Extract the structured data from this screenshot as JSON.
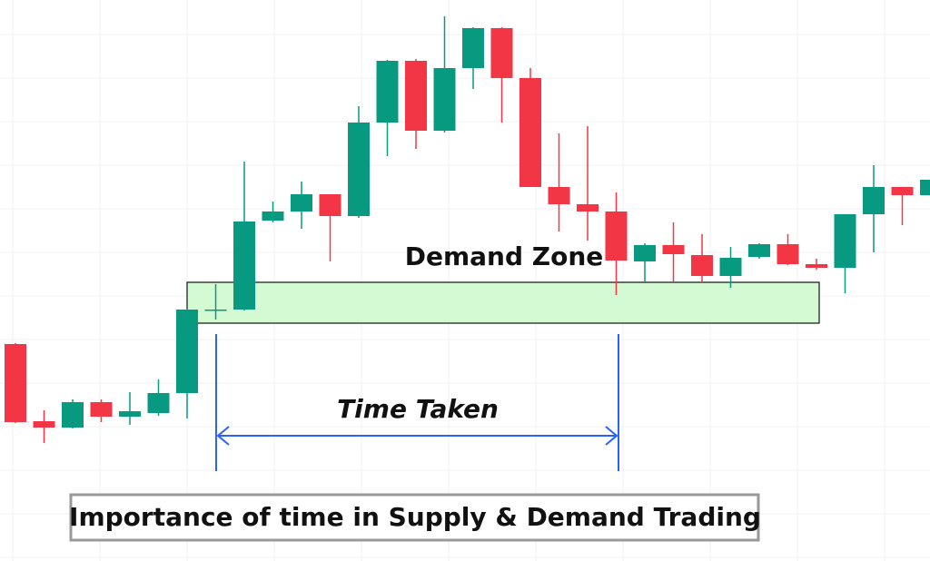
{
  "chart_data": {
    "type": "candlestick",
    "up_color": "#089981",
    "down_color": "#f23645",
    "grid": true,
    "ylim": [
      0,
      618
    ],
    "categories": [
      null,
      null,
      null,
      null,
      null,
      null,
      null,
      null,
      null,
      null,
      null,
      null,
      null,
      null,
      null,
      null,
      null,
      null,
      null,
      null,
      null,
      null,
      null,
      null,
      null,
      null,
      null,
      null,
      null,
      null,
      null,
      null,
      null
    ],
    "open": [
      239,
      154,
      147,
      175,
      159,
      163,
      185,
      276,
      277,
      375,
      385,
      404,
      380,
      483,
      551,
      474,
      543,
      587,
      532,
      412,
      393,
      385,
      330,
      348,
      337,
      314,
      335,
      349,
      327,
      323,
      382,
      412,
      403
    ],
    "high": [
      240,
      166,
      178,
      178,
      186,
      200,
      278,
      305,
      440,
      396,
      418,
      404,
      501,
      552,
      553,
      600,
      588,
      588,
      543,
      471,
      479,
      406,
      350,
      373,
      360,
      346,
      350,
      360,
      333,
      382,
      436,
      412,
      422
    ],
    "low": [
      152,
      130,
      146,
      153,
      150,
      160,
      157,
      266,
      276,
      373,
      366,
      330,
      378,
      446,
      454,
      472,
      520,
      483,
      412,
      363,
      353,
      293,
      308,
      308,
      308,
      301,
      333,
      326,
      321,
      295,
      340,
      370,
      400
    ],
    "close": [
      153,
      147,
      175,
      159,
      165,
      185,
      277,
      277,
      374,
      385,
      404,
      380,
      483,
      551,
      474,
      543,
      587,
      532,
      412,
      393,
      385,
      331,
      348,
      338,
      314,
      334,
      349,
      327,
      323,
      382,
      412,
      403,
      420
    ],
    "zone": {
      "label": "Demand Zone",
      "low": 262,
      "high": 307
    },
    "span_label": "Time Taken",
    "caption": "Importance of time in Supply & Demand Trading"
  }
}
